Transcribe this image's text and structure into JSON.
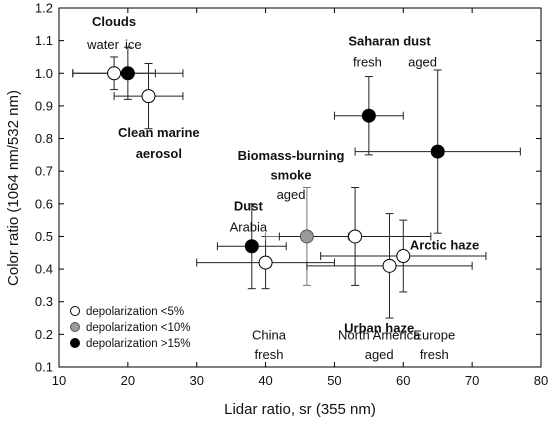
{
  "chart_data": {
    "type": "scatter",
    "xlabel": "Lidar ratio, sr (355 nm)",
    "ylabel": "Color ratio (1064 nm/532 nm)",
    "xlim": [
      10,
      80
    ],
    "ylim": [
      0.1,
      1.2
    ],
    "x_ticks": [
      10,
      20,
      30,
      40,
      50,
      60,
      70,
      80
    ],
    "y_ticks": [
      0.1,
      0.2,
      0.3,
      0.4,
      0.5,
      0.6,
      0.7,
      0.8,
      0.9,
      1.0,
      1.1,
      1.2
    ],
    "x_tick_labels": [
      "10",
      "20",
      "30",
      "40",
      "50",
      "60",
      "70",
      "80"
    ],
    "y_tick_labels": [
      "0.1",
      "0.2",
      "0.3",
      "0.4",
      "0.5",
      "0.6",
      "0.7",
      "0.8",
      "0.9",
      "1.0",
      "1.1",
      "1.2"
    ],
    "grid": false,
    "legend_position": "bottom-left",
    "legend": [
      {
        "label": "depolarization <5%",
        "fill": "#ffffff"
      },
      {
        "label": "depolarization <10%",
        "fill": "#9a9a9a"
      },
      {
        "label": "depolarization >15%",
        "fill": "#000000"
      }
    ],
    "points": [
      {
        "x": 18,
        "y": 1.0,
        "xerr": 6,
        "yerr": 0.05,
        "fill": "#ffffff"
      },
      {
        "x": 20,
        "y": 1.0,
        "xerr": 8,
        "yerr": 0.08,
        "fill": "#000000"
      },
      {
        "x": 23,
        "y": 0.93,
        "xerr": 5,
        "yerr": 0.1,
        "fill": "#ffffff"
      },
      {
        "x": 55,
        "y": 0.87,
        "xerr": 5,
        "yerr": 0.12,
        "fill": "#000000"
      },
      {
        "x": 65,
        "y": 0.76,
        "xerr": 12,
        "yerr": 0.25,
        "fill": "#000000"
      },
      {
        "x": 38,
        "y": 0.47,
        "xerr": 5,
        "yerr": 0.13,
        "fill": "#000000"
      },
      {
        "x": 40,
        "y": 0.42,
        "xerr": 10,
        "yerr": 0.08,
        "fill": "#ffffff"
      },
      {
        "x": 46,
        "y": 0.5,
        "xerr": 6,
        "yerr": 0.15,
        "fill": "#9a9a9a"
      },
      {
        "x": 53,
        "y": 0.5,
        "xerr": 11,
        "yerr": 0.15,
        "fill": "#ffffff"
      },
      {
        "x": 58,
        "y": 0.41,
        "xerr": 12,
        "yerr": 0.16,
        "fill": "#ffffff"
      },
      {
        "x": 60,
        "y": 0.44,
        "xerr": 12,
        "yerr": 0.11,
        "fill": "#ffffff"
      }
    ],
    "annotations": [
      {
        "text": "Clouds",
        "x": 18,
        "y": 1.145,
        "bold": true
      },
      {
        "text": "water",
        "x": 16.4,
        "y": 1.075,
        "bold": false
      },
      {
        "text": "ice",
        "x": 20.8,
        "y": 1.075,
        "bold": false
      },
      {
        "text": "Clean marine",
        "x": 24.5,
        "y": 0.805,
        "bold": true
      },
      {
        "text": "aerosol",
        "x": 24.5,
        "y": 0.74,
        "bold": true
      },
      {
        "text": "Saharan dust",
        "x": 58,
        "y": 1.085,
        "bold": true
      },
      {
        "text": "fresh",
        "x": 54.8,
        "y": 1.02,
        "bold": false
      },
      {
        "text": "aged",
        "x": 62.8,
        "y": 1.02,
        "bold": false
      },
      {
        "text": "Biomass-burning",
        "x": 43.7,
        "y": 0.735,
        "bold": true
      },
      {
        "text": "smoke",
        "x": 43.7,
        "y": 0.675,
        "bold": true
      },
      {
        "text": "aged",
        "x": 43.7,
        "y": 0.615,
        "bold": false
      },
      {
        "text": "Dust",
        "x": 37.5,
        "y": 0.58,
        "bold": true
      },
      {
        "text": "Arabia",
        "x": 37.5,
        "y": 0.515,
        "bold": false
      },
      {
        "text": "Arctic haze",
        "x": 66,
        "y": 0.46,
        "bold": true
      },
      {
        "text": "Urban haze",
        "x": 56.5,
        "y": 0.205,
        "bold": true
      },
      {
        "text": "China",
        "x": 40.5,
        "y": 0.185,
        "bold": false
      },
      {
        "text": "fresh",
        "x": 40.5,
        "y": 0.125,
        "bold": false
      },
      {
        "text": "North America",
        "x": 56.5,
        "y": 0.185,
        "bold": false
      },
      {
        "text": "aged",
        "x": 56.5,
        "y": 0.125,
        "bold": false
      },
      {
        "text": "Europe",
        "x": 64.5,
        "y": 0.185,
        "bold": false
      },
      {
        "text": "fresh",
        "x": 64.5,
        "y": 0.125,
        "bold": false
      }
    ]
  }
}
